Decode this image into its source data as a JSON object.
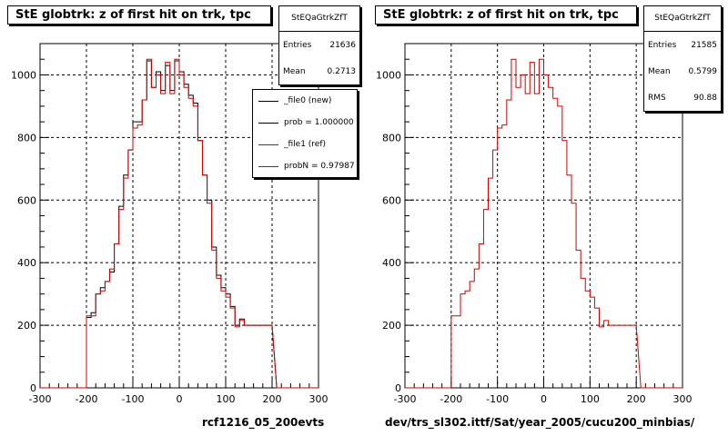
{
  "chart_data": [
    {
      "type": "step-histogram",
      "title": "StE globtrk: z of first hit on trk, tpc",
      "xlim": [
        -300,
        300
      ],
      "ylim": [
        0,
        1100
      ],
      "xticks": [
        -300,
        -200,
        -100,
        0,
        100,
        200,
        300
      ],
      "yticks": [
        0,
        200,
        400,
        600,
        800,
        1000
      ],
      "grid": true,
      "xlabel": "rcf1216_05_200evts",
      "bin_edges": [
        -200,
        -190,
        -180,
        -170,
        -160,
        -150,
        -140,
        -130,
        -120,
        -110,
        -100,
        -90,
        -80,
        -70,
        -60,
        -50,
        -40,
        -30,
        -20,
        -10,
        0,
        10,
        20,
        30,
        40,
        50,
        60,
        70,
        80,
        90,
        100,
        110,
        120,
        130,
        140,
        150,
        160,
        170,
        180,
        190,
        200,
        210
      ],
      "series": [
        {
          "name": "_file0 (new)",
          "color": "#000000",
          "values": [
            225,
            240,
            300,
            320,
            340,
            370,
            460,
            580,
            680,
            760,
            850,
            850,
            920,
            1045,
            960,
            1010,
            950,
            1030,
            950,
            1045,
            1010,
            970,
            935,
            910,
            790,
            680,
            600,
            450,
            360,
            320,
            300,
            260,
            200,
            220,
            200,
            200,
            200,
            200,
            200,
            200
          ]
        },
        {
          "name": "_file1 (ref)",
          "color": "#d40000",
          "values": [
            230,
            230,
            300,
            310,
            340,
            380,
            460,
            570,
            670,
            760,
            830,
            840,
            920,
            1050,
            960,
            1000,
            940,
            1040,
            940,
            1050,
            1000,
            960,
            925,
            900,
            790,
            680,
            590,
            440,
            350,
            310,
            290,
            255,
            195,
            215,
            200,
            200,
            200,
            200,
            200,
            200
          ]
        }
      ],
      "stats": {
        "name": "StEQaGtrkZfT",
        "entries_label": "Entries",
        "entries": "21636",
        "mean_label": "Mean",
        "mean": "0.2713"
      },
      "legend": [
        {
          "label": "_file0 (new)",
          "color": "#000000"
        },
        {
          "label": "prob = 1.000000",
          "color": "#000000"
        },
        {
          "label": "_file1 (ref)",
          "color": "#d40000"
        },
        {
          "label": "probN = 0.97987",
          "color": "#d40000"
        }
      ]
    },
    {
      "type": "step-histogram",
      "title": "StE globtrk: z of first hit on trk, tpc",
      "xlim": [
        -300,
        300
      ],
      "ylim": [
        0,
        1100
      ],
      "xticks": [
        -300,
        -200,
        -100,
        0,
        100,
        200,
        300
      ],
      "yticks": [
        0,
        200,
        400,
        600,
        800,
        1000
      ],
      "grid": true,
      "xlabel": "dev/trs_sl302.ittf/Sat/year_2005/cucu200_minbias/",
      "bin_edges": [
        -200,
        -190,
        -180,
        -170,
        -160,
        -150,
        -140,
        -130,
        -120,
        -110,
        -100,
        -90,
        -80,
        -70,
        -60,
        -50,
        -40,
        -30,
        -20,
        -10,
        0,
        10,
        20,
        30,
        40,
        50,
        60,
        70,
        80,
        90,
        100,
        110,
        120,
        130,
        140,
        150,
        160,
        170,
        180,
        190,
        200,
        210
      ],
      "series": [
        {
          "name": "",
          "color": "#d40000",
          "values": [
            230,
            230,
            300,
            310,
            340,
            380,
            460,
            570,
            670,
            760,
            830,
            840,
            920,
            1050,
            960,
            1000,
            940,
            1040,
            940,
            1050,
            1000,
            960,
            925,
            900,
            790,
            680,
            590,
            440,
            350,
            310,
            290,
            255,
            195,
            215,
            200,
            200,
            200,
            200,
            200,
            200
          ]
        }
      ],
      "stats": {
        "name": "StEQaGtrkZfT",
        "entries_label": "Entries",
        "entries": "21585",
        "mean_label": "Mean",
        "mean": "0.5799",
        "rms_label": "RMS",
        "rms": "90.88"
      }
    }
  ]
}
